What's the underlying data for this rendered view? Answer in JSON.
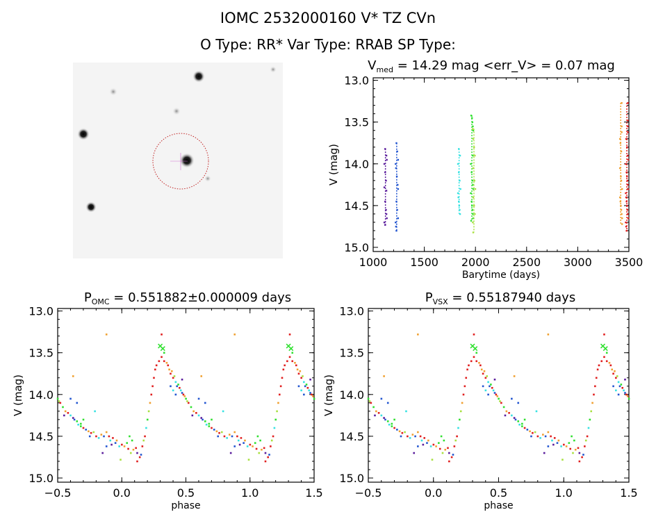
{
  "header": {
    "title": "IOMC 2532000160    V* TZ CVn",
    "subtitle": "O Type: RR*  Var Type: RRAB  SP Type:"
  },
  "colors": {
    "purple": "#5a1c9c",
    "blue": "#2255d0",
    "cyan": "#36e2e2",
    "green": "#30e030",
    "yellowgreen": "#a8e040",
    "orange": "#f0a030",
    "red": "#e01e1e",
    "aperture": "#c02020"
  },
  "chart_data": [
    {
      "type": "scatter",
      "title_main": "V",
      "title_sub": "med",
      "title_rest": " = 14.29 mag <err_V> = 0.07 mag",
      "xlabel": "Barytime (days)",
      "ylabel": "V (mag)",
      "xlim": [
        1000,
        3500
      ],
      "ylim": [
        15.05,
        12.97
      ],
      "y_inverted": true,
      "xticks": [
        "1000",
        "1500",
        "2000",
        "2500",
        "3000",
        "3500"
      ],
      "yticks": [
        "13.0",
        "13.5",
        "14.0",
        "14.5",
        "15.0"
      ],
      "seasons": [
        {
          "color": "purple",
          "time": 1120,
          "mags": [
            13.82,
            13.9,
            13.95,
            14.0,
            14.1,
            14.2,
            14.28,
            14.32,
            14.45,
            14.55,
            14.6,
            14.65,
            14.7,
            14.73
          ]
        },
        {
          "color": "blue",
          "time": 1230,
          "mags": [
            13.75,
            13.85,
            13.95,
            14.0,
            14.05,
            14.15,
            14.25,
            14.3,
            14.45,
            14.55,
            14.65,
            14.7,
            14.75,
            14.8
          ]
        },
        {
          "color": "cyan",
          "time": 1840,
          "mags": [
            13.82,
            13.9,
            14.0,
            14.1,
            14.2,
            14.3,
            14.35,
            14.4,
            14.45,
            14.5,
            14.55,
            14.6
          ]
        },
        {
          "color": "green",
          "time": 1965,
          "mags": [
            13.42,
            13.45,
            13.5,
            13.55,
            13.6,
            13.9,
            14.0,
            14.1,
            14.2,
            14.25,
            14.3,
            14.35,
            14.45,
            14.5,
            14.55,
            14.6,
            14.65,
            14.68
          ]
        },
        {
          "color": "yellowgreen",
          "time": 1985,
          "mags": [
            13.58,
            13.7,
            13.8,
            13.9,
            14.05,
            14.2,
            14.3,
            14.4,
            14.5,
            14.6,
            14.7,
            14.82
          ]
        },
        {
          "color": "orange",
          "time": 3420,
          "mags": [
            13.27,
            13.55,
            13.62,
            13.7,
            13.75,
            13.85,
            14.05,
            14.15,
            14.2,
            14.3,
            14.4,
            14.45,
            14.5,
            14.55,
            14.6,
            14.65,
            14.72
          ]
        },
        {
          "color": "red",
          "time": 3480,
          "mags": [
            13.27,
            13.48,
            13.55,
            13.62,
            13.7,
            13.8,
            13.9,
            13.95,
            14.0,
            14.1,
            14.15,
            14.2,
            14.25,
            14.3,
            14.35,
            14.4,
            14.45,
            14.5,
            14.55,
            14.6,
            14.65,
            14.7,
            14.75,
            14.8
          ]
        }
      ]
    },
    {
      "type": "scatter",
      "title_main": "P",
      "title_sub": "OMC",
      "title_rest": " = 0.551882±0.000009 days",
      "xlabel": "phase",
      "ylabel": "V (mag)",
      "xlim": [
        -0.5,
        1.5
      ],
      "ylim": [
        15.05,
        12.97
      ],
      "y_inverted": true,
      "xticks": [
        "-0.5",
        "0.0",
        "0.5",
        "1.0",
        "1.5"
      ],
      "yticks": [
        "13.0",
        "13.5",
        "14.0",
        "14.5",
        "15.0"
      ]
    },
    {
      "type": "scatter",
      "title_main": "P",
      "title_sub": "VSX",
      "title_rest": " = 0.55187940 days",
      "xlabel": "phase",
      "ylabel": "V (mag)",
      "xlim": [
        -0.5,
        1.5
      ],
      "ylim": [
        15.05,
        12.97
      ],
      "y_inverted": true,
      "xticks": [
        "-0.5",
        "0.0",
        "0.5",
        "1.0",
        "1.5"
      ],
      "yticks": [
        "13.0",
        "13.5",
        "14.0",
        "14.5",
        "15.0"
      ]
    }
  ],
  "phased_points": [
    [
      0.31,
      13.28,
      "red"
    ],
    [
      0.88,
      13.28,
      "orange"
    ],
    [
      0.62,
      13.78,
      "orange"
    ],
    [
      0.3,
      13.42,
      "green"
    ],
    [
      0.32,
      13.45,
      "green"
    ],
    [
      0.33,
      13.5,
      "green"
    ],
    [
      0.29,
      13.6,
      "red"
    ],
    [
      0.31,
      13.55,
      "red"
    ],
    [
      0.27,
      13.65,
      "red"
    ],
    [
      0.33,
      13.6,
      "red"
    ],
    [
      0.35,
      13.62,
      "orange"
    ],
    [
      0.36,
      13.65,
      "red"
    ],
    [
      0.37,
      13.7,
      "orange"
    ],
    [
      0.38,
      13.75,
      "red"
    ],
    [
      0.39,
      13.72,
      "orange"
    ],
    [
      0.4,
      13.8,
      "red"
    ],
    [
      0.41,
      13.78,
      "yellowgreen"
    ],
    [
      0.42,
      13.85,
      "cyan"
    ],
    [
      0.43,
      13.9,
      "blue"
    ],
    [
      0.44,
      13.88,
      "green"
    ],
    [
      0.45,
      13.92,
      "red"
    ],
    [
      0.46,
      13.95,
      "cyan"
    ],
    [
      0.47,
      13.98,
      "blue"
    ],
    [
      0.48,
      14.0,
      "red"
    ],
    [
      0.49,
      14.02,
      "orange"
    ],
    [
      0.5,
      14.05,
      "green"
    ],
    [
      0.51,
      14.08,
      "yellowgreen"
    ],
    [
      0.52,
      14.1,
      "red"
    ],
    [
      0.54,
      14.15,
      "green"
    ],
    [
      0.56,
      14.2,
      "orange"
    ],
    [
      0.58,
      14.22,
      "red"
    ],
    [
      0.6,
      14.25,
      "cyan"
    ],
    [
      0.62,
      14.28,
      "purple"
    ],
    [
      0.63,
      14.3,
      "blue"
    ],
    [
      0.65,
      14.32,
      "green"
    ],
    [
      0.66,
      14.36,
      "cyan"
    ],
    [
      0.68,
      14.38,
      "green"
    ],
    [
      0.7,
      14.4,
      "red"
    ],
    [
      0.72,
      14.42,
      "blue"
    ],
    [
      0.74,
      14.44,
      "orange"
    ],
    [
      0.76,
      14.46,
      "red"
    ],
    [
      0.78,
      14.45,
      "yellowgreen"
    ],
    [
      0.8,
      14.5,
      "red"
    ],
    [
      0.82,
      14.52,
      "cyan"
    ],
    [
      0.84,
      14.48,
      "orange"
    ],
    [
      0.86,
      14.5,
      "blue"
    ],
    [
      0.88,
      14.45,
      "orange"
    ],
    [
      0.9,
      14.5,
      "red"
    ],
    [
      0.91,
      14.55,
      "cyan"
    ],
    [
      0.92,
      14.6,
      "purple"
    ],
    [
      0.93,
      14.52,
      "red"
    ],
    [
      0.95,
      14.58,
      "blue"
    ],
    [
      0.96,
      14.55,
      "orange"
    ],
    [
      0.98,
      14.62,
      "cyan"
    ],
    [
      0.99,
      14.78,
      "yellowgreen"
    ],
    [
      0.0,
      14.6,
      "red"
    ],
    [
      0.02,
      14.62,
      "orange"
    ],
    [
      0.04,
      14.58,
      "green"
    ],
    [
      0.05,
      14.65,
      "red"
    ],
    [
      0.06,
      14.5,
      "green"
    ],
    [
      0.07,
      14.7,
      "yellowgreen"
    ],
    [
      0.09,
      14.66,
      "orange"
    ],
    [
      0.11,
      14.64,
      "red"
    ],
    [
      0.12,
      14.7,
      "purple"
    ],
    [
      0.14,
      14.75,
      "red"
    ],
    [
      0.15,
      14.72,
      "blue"
    ],
    [
      0.16,
      14.62,
      "red"
    ],
    [
      0.17,
      14.55,
      "yellowgreen"
    ],
    [
      0.18,
      14.5,
      "red"
    ],
    [
      0.19,
      14.4,
      "cyan"
    ],
    [
      0.2,
      14.3,
      "green"
    ],
    [
      0.21,
      14.2,
      "yellowgreen"
    ],
    [
      0.22,
      14.1,
      "orange"
    ],
    [
      0.23,
      14.0,
      "red"
    ],
    [
      0.24,
      13.9,
      "red"
    ],
    [
      0.25,
      13.8,
      "red"
    ],
    [
      0.26,
      13.7,
      "red"
    ],
    [
      0.6,
      14.05,
      "blue"
    ],
    [
      0.65,
      14.1,
      "blue"
    ],
    [
      0.75,
      14.5,
      "blue"
    ],
    [
      0.85,
      14.7,
      "purple"
    ],
    [
      0.88,
      14.62,
      "blue"
    ],
    [
      0.79,
      14.2,
      "cyan"
    ],
    [
      0.08,
      14.55,
      "green"
    ],
    [
      0.55,
      14.25,
      "purple"
    ],
    [
      0.7,
      14.3,
      "green"
    ],
    [
      0.68,
      14.35,
      "green"
    ],
    [
      0.4,
      13.95,
      "cyan"
    ],
    [
      0.42,
      14.0,
      "blue"
    ],
    [
      0.38,
      13.9,
      "blue"
    ],
    [
      0.47,
      13.82,
      "purple"
    ],
    [
      0.12,
      14.8,
      "red"
    ]
  ]
}
